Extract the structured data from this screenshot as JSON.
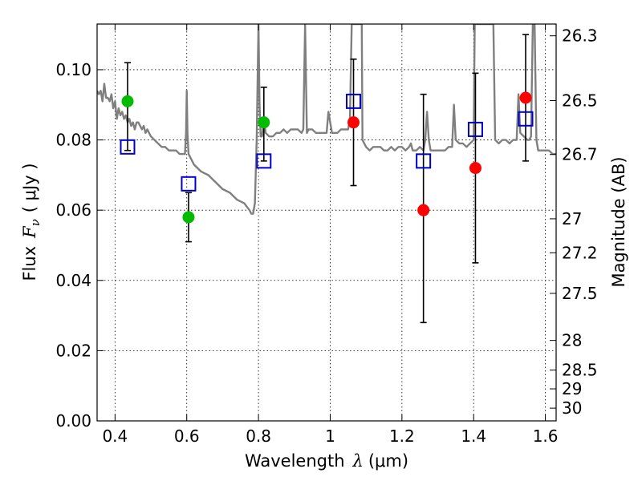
{
  "chart_data": {
    "type": "scatter",
    "xlabel": {
      "prefix": "Wavelength",
      "symbol": "λ",
      "unit": "(μm)"
    },
    "ylabel": {
      "prefix": "Flux",
      "symbol": "F",
      "subscript": "ν",
      "unit": "( μJy )"
    },
    "y2label": "Magnitude (AB)",
    "xlim": [
      0.35,
      1.63
    ],
    "ylim": [
      0.0,
      0.113
    ],
    "grid": true,
    "x_ticks": [
      {
        "value": 0.4,
        "label": "0.4"
      },
      {
        "value": 0.6,
        "label": "0.6"
      },
      {
        "value": 0.8,
        "label": "0.8"
      },
      {
        "value": 1.0,
        "label": "1"
      },
      {
        "value": 1.2,
        "label": "1.2"
      },
      {
        "value": 1.4,
        "label": "1.4"
      },
      {
        "value": 1.6,
        "label": "1.6"
      }
    ],
    "y_ticks": [
      {
        "value": 0.0,
        "label": "0.00"
      },
      {
        "value": 0.02,
        "label": "0.02"
      },
      {
        "value": 0.04,
        "label": "0.04"
      },
      {
        "value": 0.06,
        "label": "0.06"
      },
      {
        "value": 0.08,
        "label": "0.08"
      },
      {
        "value": 0.1,
        "label": "0.10"
      }
    ],
    "y2_ticks": [
      {
        "label": "26.3",
        "mag": 26.3
      },
      {
        "label": "26.5",
        "mag": 26.5
      },
      {
        "label": "26.7",
        "mag": 26.7
      },
      {
        "label": "27",
        "mag": 27.0
      },
      {
        "label": "27.2",
        "mag": 27.2
      },
      {
        "label": "27.5",
        "mag": 27.5
      },
      {
        "label": "28",
        "mag": 28.0
      },
      {
        "label": "28.5",
        "mag": 28.5
      },
      {
        "label": "29",
        "mag": 29.0
      },
      {
        "label": "30",
        "mag": 30.0
      }
    ],
    "series": [
      {
        "kind": "sed_model",
        "color": "#7f7f7f",
        "points": [
          [
            0.35,
            0.094
          ],
          [
            0.355,
            0.093
          ],
          [
            0.36,
            0.094
          ],
          [
            0.365,
            0.091
          ],
          [
            0.37,
            0.096
          ],
          [
            0.375,
            0.092
          ],
          [
            0.38,
            0.092
          ],
          [
            0.385,
            0.091
          ],
          [
            0.39,
            0.093
          ],
          [
            0.395,
            0.089
          ],
          [
            0.4,
            0.091
          ],
          [
            0.405,
            0.086
          ],
          [
            0.41,
            0.089
          ],
          [
            0.415,
            0.087
          ],
          [
            0.42,
            0.088
          ],
          [
            0.425,
            0.086
          ],
          [
            0.43,
            0.087
          ],
          [
            0.435,
            0.085
          ],
          [
            0.44,
            0.086
          ],
          [
            0.445,
            0.084
          ],
          [
            0.45,
            0.085
          ],
          [
            0.455,
            0.083
          ],
          [
            0.46,
            0.085
          ],
          [
            0.465,
            0.085
          ],
          [
            0.47,
            0.084
          ],
          [
            0.475,
            0.083
          ],
          [
            0.48,
            0.084
          ],
          [
            0.485,
            0.082
          ],
          [
            0.49,
            0.083
          ],
          [
            0.5,
            0.081
          ],
          [
            0.51,
            0.08
          ],
          [
            0.52,
            0.079
          ],
          [
            0.53,
            0.078
          ],
          [
            0.54,
            0.078
          ],
          [
            0.55,
            0.077
          ],
          [
            0.56,
            0.077
          ],
          [
            0.57,
            0.077
          ],
          [
            0.58,
            0.076
          ],
          [
            0.59,
            0.076
          ],
          [
            0.595,
            0.076
          ],
          [
            0.598,
            0.082
          ],
          [
            0.6,
            0.094
          ],
          [
            0.602,
            0.082
          ],
          [
            0.605,
            0.076
          ],
          [
            0.61,
            0.075
          ],
          [
            0.62,
            0.073
          ],
          [
            0.64,
            0.071
          ],
          [
            0.66,
            0.07
          ],
          [
            0.68,
            0.068
          ],
          [
            0.7,
            0.066
          ],
          [
            0.72,
            0.065
          ],
          [
            0.74,
            0.063
          ],
          [
            0.76,
            0.062
          ],
          [
            0.775,
            0.06
          ],
          [
            0.78,
            0.059
          ],
          [
            0.785,
            0.059
          ],
          [
            0.79,
            0.062
          ],
          [
            0.795,
            0.08
          ],
          [
            0.8,
            0.113
          ],
          [
            0.803,
            0.09
          ],
          [
            0.806,
            0.081
          ],
          [
            0.81,
            0.081
          ],
          [
            0.815,
            0.086
          ],
          [
            0.82,
            0.082
          ],
          [
            0.83,
            0.081
          ],
          [
            0.84,
            0.081
          ],
          [
            0.85,
            0.082
          ],
          [
            0.86,
            0.082
          ],
          [
            0.87,
            0.083
          ],
          [
            0.88,
            0.082
          ],
          [
            0.89,
            0.083
          ],
          [
            0.9,
            0.083
          ],
          [
            0.91,
            0.083
          ],
          [
            0.92,
            0.082
          ],
          [
            0.925,
            0.083
          ],
          [
            0.93,
            0.113
          ],
          [
            0.935,
            0.082
          ],
          [
            0.94,
            0.083
          ],
          [
            0.95,
            0.083
          ],
          [
            0.96,
            0.082
          ],
          [
            0.97,
            0.082
          ],
          [
            0.98,
            0.082
          ],
          [
            0.99,
            0.082
          ],
          [
            0.995,
            0.088
          ],
          [
            1.0,
            0.085
          ],
          [
            1.005,
            0.082
          ],
          [
            1.01,
            0.082
          ],
          [
            1.02,
            0.082
          ],
          [
            1.03,
            0.083
          ],
          [
            1.04,
            0.083
          ],
          [
            1.05,
            0.083
          ],
          [
            1.055,
            0.086
          ],
          [
            1.06,
            0.113
          ],
          [
            1.07,
            0.113
          ],
          [
            1.08,
            0.113
          ],
          [
            1.088,
            0.113
          ],
          [
            1.09,
            0.08
          ],
          [
            1.1,
            0.078
          ],
          [
            1.11,
            0.077
          ],
          [
            1.12,
            0.078
          ],
          [
            1.13,
            0.078
          ],
          [
            1.14,
            0.078
          ],
          [
            1.15,
            0.077
          ],
          [
            1.16,
            0.077
          ],
          [
            1.17,
            0.078
          ],
          [
            1.18,
            0.077
          ],
          [
            1.19,
            0.078
          ],
          [
            1.2,
            0.078
          ],
          [
            1.21,
            0.077
          ],
          [
            1.22,
            0.078
          ],
          [
            1.225,
            0.079
          ],
          [
            1.23,
            0.077
          ],
          [
            1.24,
            0.077
          ],
          [
            1.25,
            0.078
          ],
          [
            1.26,
            0.077
          ],
          [
            1.265,
            0.08
          ],
          [
            1.27,
            0.088
          ],
          [
            1.275,
            0.08
          ],
          [
            1.28,
            0.077
          ],
          [
            1.29,
            0.077
          ],
          [
            1.3,
            0.077
          ],
          [
            1.31,
            0.077
          ],
          [
            1.32,
            0.077
          ],
          [
            1.33,
            0.078
          ],
          [
            1.34,
            0.078
          ],
          [
            1.345,
            0.09
          ],
          [
            1.35,
            0.08
          ],
          [
            1.36,
            0.079
          ],
          [
            1.37,
            0.079
          ],
          [
            1.38,
            0.078
          ],
          [
            1.39,
            0.079
          ],
          [
            1.4,
            0.08
          ],
          [
            1.403,
            0.113
          ],
          [
            1.41,
            0.113
          ],
          [
            1.42,
            0.113
          ],
          [
            1.43,
            0.113
          ],
          [
            1.44,
            0.113
          ],
          [
            1.45,
            0.113
          ],
          [
            1.455,
            0.113
          ],
          [
            1.46,
            0.08
          ],
          [
            1.47,
            0.079
          ],
          [
            1.48,
            0.08
          ],
          [
            1.49,
            0.08
          ],
          [
            1.5,
            0.079
          ],
          [
            1.51,
            0.08
          ],
          [
            1.52,
            0.08
          ],
          [
            1.525,
            0.093
          ],
          [
            1.53,
            0.082
          ],
          [
            1.54,
            0.081
          ],
          [
            1.55,
            0.08
          ],
          [
            1.555,
            0.08
          ],
          [
            1.56,
            0.081
          ],
          [
            1.565,
            0.113
          ],
          [
            1.57,
            0.113
          ],
          [
            1.575,
            0.08
          ],
          [
            1.58,
            0.077
          ],
          [
            1.59,
            0.077
          ],
          [
            1.6,
            0.077
          ],
          [
            1.61,
            0.077
          ],
          [
            1.62,
            0.076
          ],
          [
            1.63,
            0.076
          ]
        ]
      },
      {
        "kind": "observed_green",
        "color": "#00bb00",
        "points": [
          {
            "x": 0.435,
            "y": 0.091,
            "yerr_low": 0.077,
            "yerr_high": 0.102
          },
          {
            "x": 0.605,
            "y": 0.058,
            "yerr_low": 0.051,
            "yerr_high": 0.065
          },
          {
            "x": 0.815,
            "y": 0.085,
            "yerr_low": 0.074,
            "yerr_high": 0.095
          }
        ]
      },
      {
        "kind": "observed_red",
        "color": "#ff0000",
        "points": [
          {
            "x": 1.065,
            "y": 0.085,
            "yerr_low": 0.067,
            "yerr_high": 0.103
          },
          {
            "x": 1.26,
            "y": 0.06,
            "yerr_low": 0.028,
            "yerr_high": 0.093
          },
          {
            "x": 1.405,
            "y": 0.072,
            "yerr_low": 0.045,
            "yerr_high": 0.099
          },
          {
            "x": 1.545,
            "y": 0.092,
            "yerr_low": 0.074,
            "yerr_high": 0.11
          }
        ]
      },
      {
        "kind": "model_squares",
        "color": "#0000cc",
        "points": [
          {
            "x": 0.435,
            "y": 0.078
          },
          {
            "x": 0.605,
            "y": 0.0675
          },
          {
            "x": 0.815,
            "y": 0.074
          },
          {
            "x": 1.065,
            "y": 0.091
          },
          {
            "x": 1.26,
            "y": 0.074
          },
          {
            "x": 1.405,
            "y": 0.083
          },
          {
            "x": 1.545,
            "y": 0.086
          }
        ]
      }
    ]
  }
}
